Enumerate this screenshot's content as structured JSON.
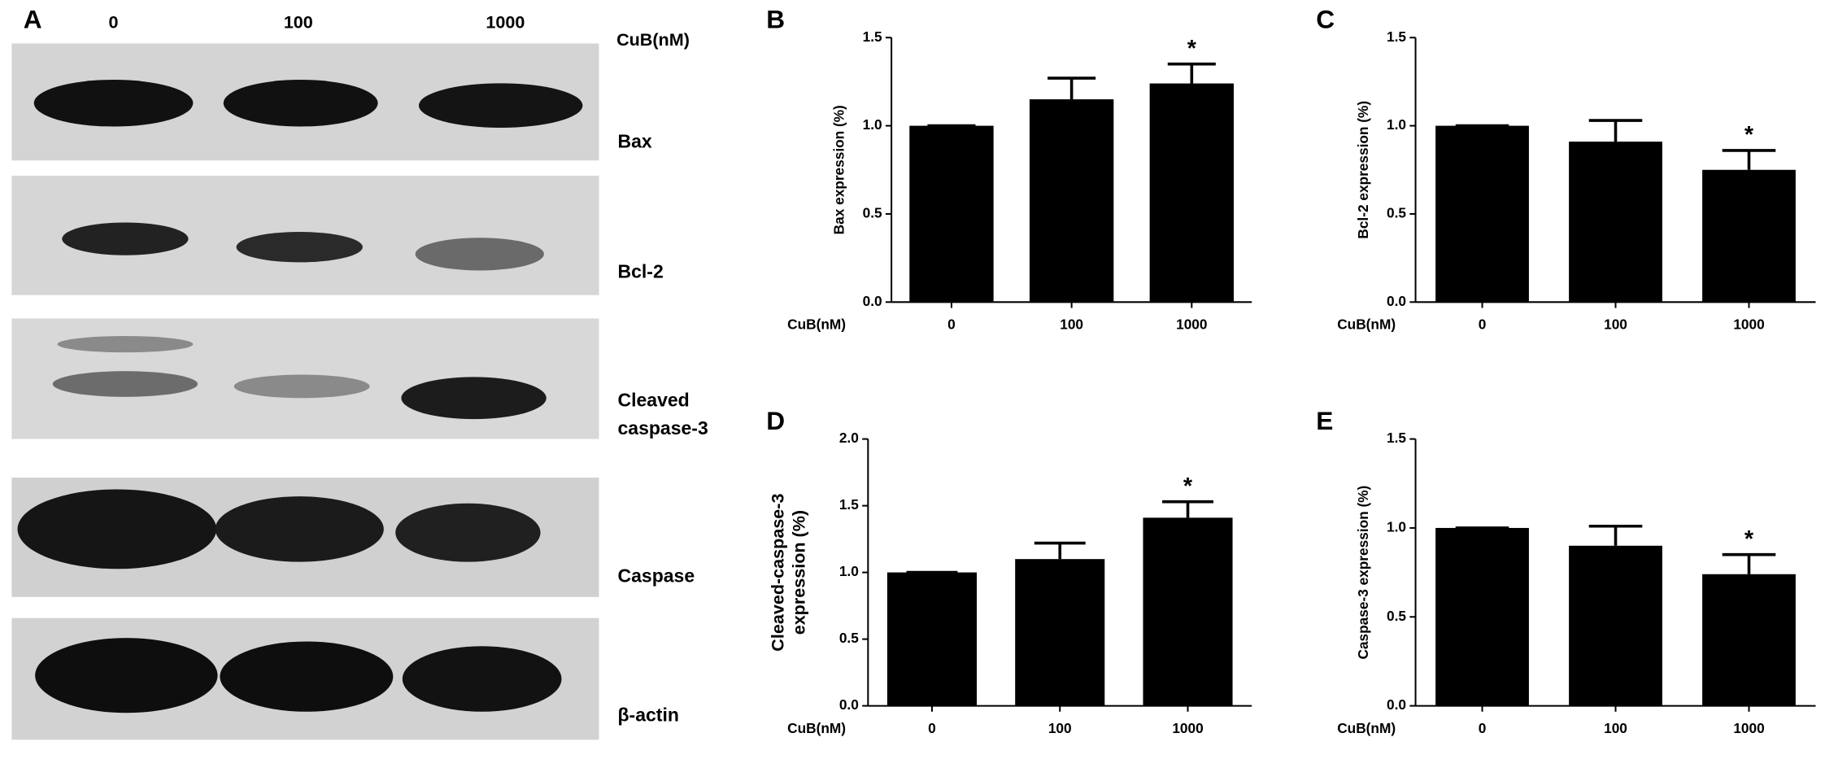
{
  "panel_a": {
    "label": "A",
    "doses": [
      "0",
      "100",
      "1000"
    ],
    "unit_label": "CuB(nM)",
    "bands": [
      [
        "Bax"
      ],
      [
        "Bcl-2"
      ],
      [
        "Cleaved",
        "caspase-3"
      ],
      [
        "Caspase"
      ],
      [
        "β-actin"
      ]
    ]
  },
  "chart_data": [
    {
      "type": "bar",
      "panel": "B",
      "ylabel": [
        "Bax expression (%)"
      ],
      "xlabel": "CuB(nM)",
      "categories": [
        "0",
        "100",
        "1000"
      ],
      "values": [
        1.0,
        1.15,
        1.24
      ],
      "errors": [
        0,
        0.12,
        0.11
      ],
      "color": "#000000",
      "ylim": [
        0,
        1.5
      ],
      "yticks": [
        {
          "value": 0,
          "label": "0.0"
        },
        {
          "value": 0.5,
          "label": "0.5"
        },
        {
          "value": 1,
          "label": "1.0"
        },
        {
          "value": 1.5,
          "label": "1.5"
        }
      ],
      "annotations": [
        {
          "text": "*",
          "x": "1000"
        }
      ]
    },
    {
      "type": "bar",
      "panel": "C",
      "ylabel": [
        "Bcl-2 expression (%)"
      ],
      "xlabel": "CuB(nM)",
      "categories": [
        "0",
        "100",
        "1000"
      ],
      "values": [
        1.0,
        0.91,
        0.75
      ],
      "errors": [
        0,
        0.12,
        0.11
      ],
      "color": "#000000",
      "ylim": [
        0,
        1.5
      ],
      "yticks": [
        {
          "value": 0,
          "label": "0.0"
        },
        {
          "value": 0.5,
          "label": "0.5"
        },
        {
          "value": 1,
          "label": "1.0"
        },
        {
          "value": 1.5,
          "label": "1.5"
        }
      ],
      "annotations": [
        {
          "text": "*",
          "x": "1000"
        }
      ]
    },
    {
      "type": "bar",
      "panel": "D",
      "ylabel": [
        "Cleaved-caspase-3",
        "expression (%)"
      ],
      "xlabel": "CuB(nM)",
      "categories": [
        "0",
        "100",
        "1000"
      ],
      "values": [
        1.0,
        1.1,
        1.41
      ],
      "errors": [
        0,
        0.12,
        0.12
      ],
      "color": "#000000",
      "ylim": [
        0,
        2
      ],
      "yticks": [
        {
          "value": 0,
          "label": "0.0"
        },
        {
          "value": 0.5,
          "label": "0.5"
        },
        {
          "value": 1,
          "label": "1.0"
        },
        {
          "value": 1.5,
          "label": "1.5"
        },
        {
          "value": 2,
          "label": "2.0"
        }
      ],
      "annotations": [
        {
          "text": "*",
          "x": "1000"
        }
      ]
    },
    {
      "type": "bar",
      "panel": "E",
      "ylabel": [
        "Caspase-3 expression (%)"
      ],
      "xlabel": "CuB(nM)",
      "categories": [
        "0",
        "100",
        "1000"
      ],
      "values": [
        1.0,
        0.9,
        0.74
      ],
      "errors": [
        0,
        0.11,
        0.11
      ],
      "color": "#000000",
      "ylim": [
        0,
        1.5
      ],
      "yticks": [
        {
          "value": 0,
          "label": "0.0"
        },
        {
          "value": 0.5,
          "label": "0.5"
        },
        {
          "value": 1,
          "label": "1.0"
        },
        {
          "value": 1.5,
          "label": "1.5"
        }
      ],
      "annotations": [
        {
          "text": "*",
          "x": "1000"
        }
      ]
    }
  ]
}
